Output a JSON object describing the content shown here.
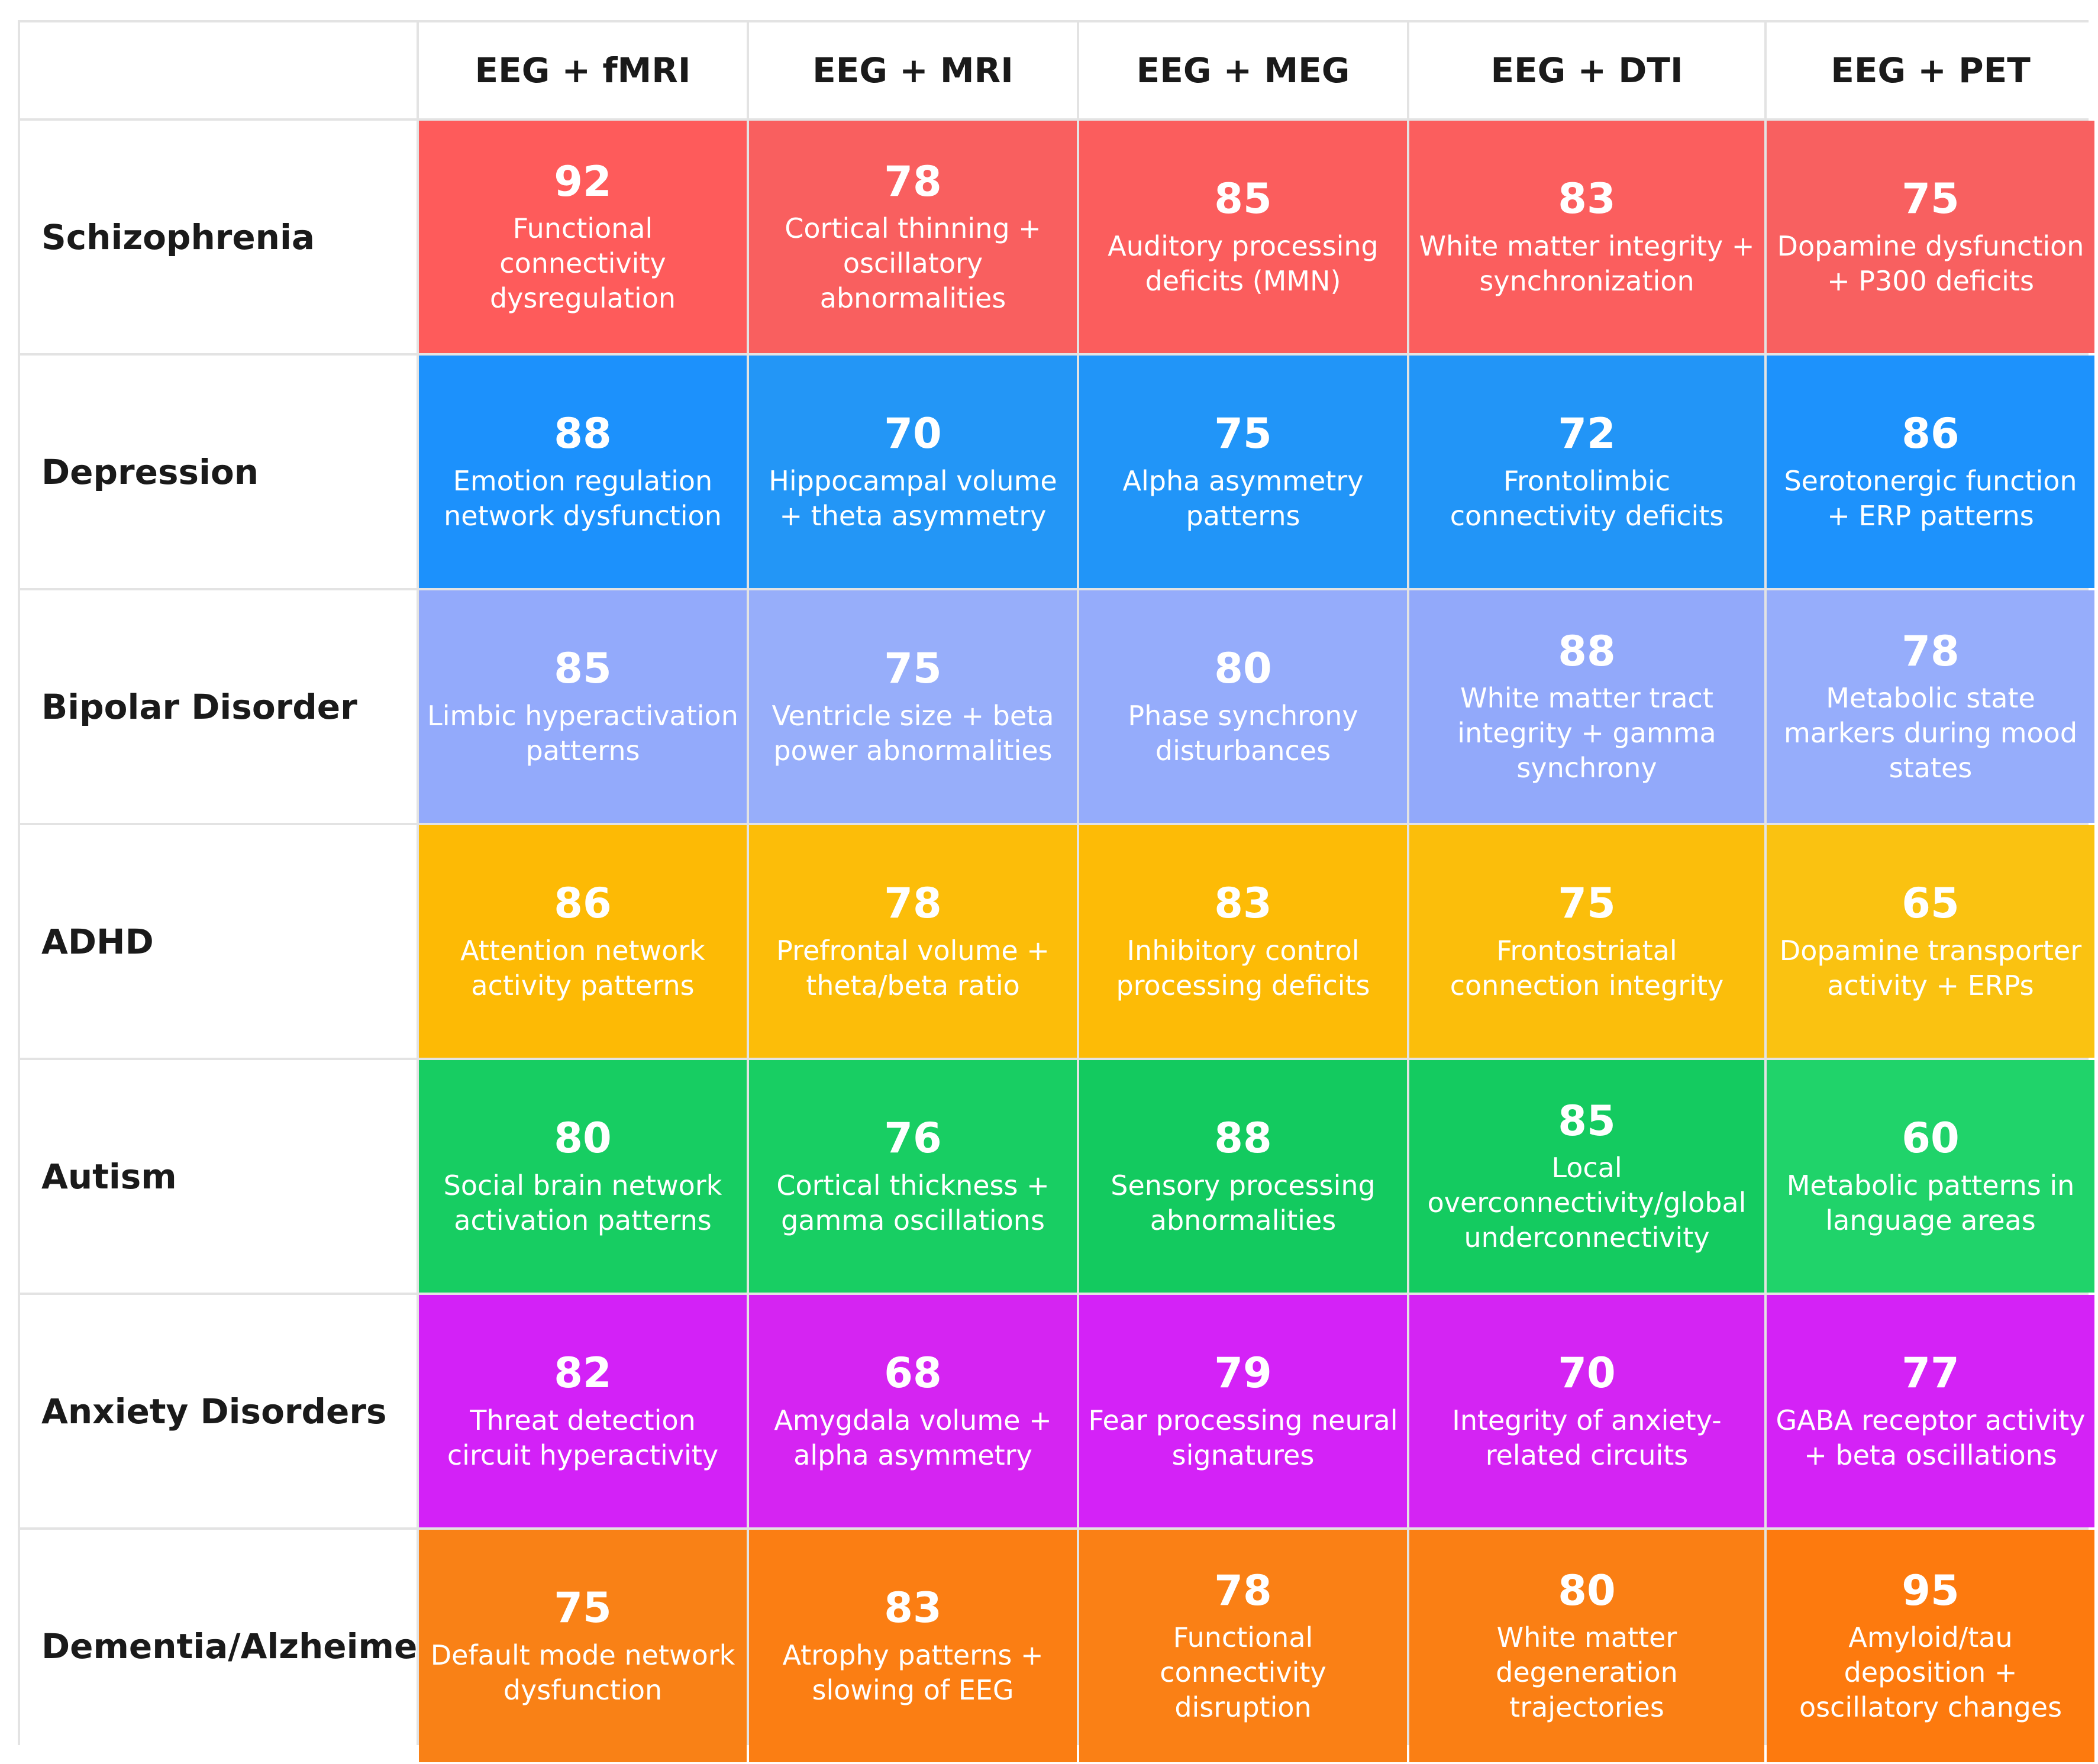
{
  "chart_data": {
    "type": "heatmap",
    "columns": [
      "EEG + fMRI",
      "EEG + MRI",
      "EEG + MEG",
      "EEG + DTI",
      "EEG + PET"
    ],
    "rows": [
      {
        "label": "Schizophrenia",
        "color": "#ff5a5a",
        "cells": [
          {
            "value": 92,
            "desc": "Functional connectivity dysregulation"
          },
          {
            "value": 78,
            "desc": "Cortical thinning + oscillatory abnormalities"
          },
          {
            "value": 85,
            "desc": "Auditory processing deficits (MMN)"
          },
          {
            "value": 83,
            "desc": "White matter integrity + synchronization"
          },
          {
            "value": 75,
            "desc": "Dopamine dysfunction + P300 deficits"
          }
        ]
      },
      {
        "label": "Depression",
        "color": "#1a8ffc",
        "cells": [
          {
            "value": 88,
            "desc": "Emotion regulation network dysfunction"
          },
          {
            "value": 70,
            "desc": "Hippocampal volume + theta asymmetry"
          },
          {
            "value": 75,
            "desc": "Alpha asymmetry patterns"
          },
          {
            "value": 72,
            "desc": "Frontolimbic connectivity deficits"
          },
          {
            "value": 86,
            "desc": "Serotonergic function + ERP patterns"
          }
        ]
      },
      {
        "label": "Bipolar Disorder",
        "color": "#8fa6f8",
        "cells": [
          {
            "value": 85,
            "desc": "Limbic hyperactivation patterns"
          },
          {
            "value": 75,
            "desc": "Ventricle size + beta power abnormalities"
          },
          {
            "value": 80,
            "desc": "Phase synchrony disturbances"
          },
          {
            "value": 88,
            "desc": "White matter tract integrity + gamma synchrony"
          },
          {
            "value": 78,
            "desc": "Metabolic state markers during mood states"
          }
        ]
      },
      {
        "label": "ADHD",
        "color": "#fcb600",
        "cells": [
          {
            "value": 86,
            "desc": "Attention network activity patterns"
          },
          {
            "value": 78,
            "desc": "Prefrontal volume + theta/beta ratio"
          },
          {
            "value": 83,
            "desc": "Inhibitory control processing deficits"
          },
          {
            "value": 75,
            "desc": "Frontostriatal connection integrity"
          },
          {
            "value": 65,
            "desc": "Dopamine transporter activity + ERPs"
          }
        ]
      },
      {
        "label": "Autism",
        "color": "#10c85c",
        "cells": [
          {
            "value": 80,
            "desc": "Social brain network activation patterns"
          },
          {
            "value": 76,
            "desc": "Cortical thickness + gamma oscillations"
          },
          {
            "value": 88,
            "desc": "Sensory processing abnormalities"
          },
          {
            "value": 85,
            "desc": "Local overconnectivity/global underconnectivity"
          },
          {
            "value": 60,
            "desc": "Metabolic patterns in language areas"
          }
        ]
      },
      {
        "label": "Anxiety Disorders",
        "color": "#d21ef6",
        "cells": [
          {
            "value": 82,
            "desc": "Threat detection circuit hyperactivity"
          },
          {
            "value": 68,
            "desc": "Amygdala volume + alpha asymmetry"
          },
          {
            "value": 79,
            "desc": "Fear processing neural signatures"
          },
          {
            "value": 70,
            "desc": "Integrity of anxiety-related circuits"
          },
          {
            "value": 77,
            "desc": "GABA receptor activity + beta oscillations"
          }
        ]
      },
      {
        "label": "Dementia/Alzheimer's",
        "color": "#fd7a0e",
        "cells": [
          {
            "value": 75,
            "desc": "Default mode network dysfunction"
          },
          {
            "value": 83,
            "desc": "Atrophy patterns + slowing of EEG"
          },
          {
            "value": 78,
            "desc": "Functional connectivity disruption"
          },
          {
            "value": 80,
            "desc": "White matter degeneration trajectories"
          },
          {
            "value": 95,
            "desc": "Amyloid/tau deposition + oscillatory changes"
          }
        ]
      }
    ]
  }
}
